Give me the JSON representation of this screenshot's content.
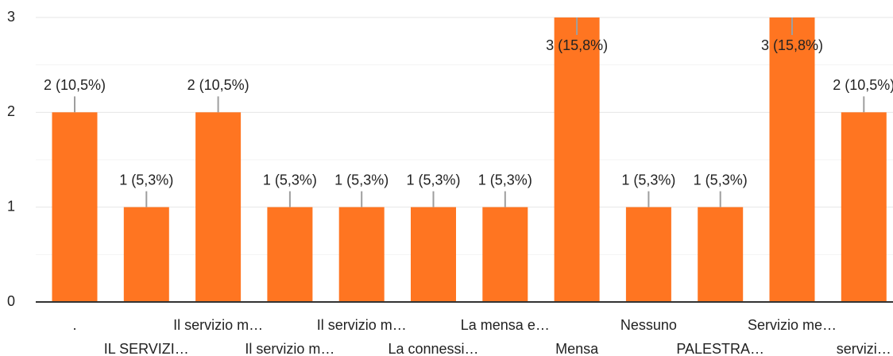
{
  "chart_data": {
    "type": "bar",
    "categories": [
      ".",
      "IL SERVIZI…",
      "Il servizio m…",
      "Il servizio m…",
      "Il servizio m…",
      "La connessi…",
      "La mensa e…",
      "Mensa",
      "Nessuno",
      "PALESTRA…",
      "Servizio me…",
      "servizi…"
    ],
    "values": [
      2,
      1,
      2,
      1,
      1,
      1,
      1,
      3,
      1,
      1,
      3,
      2
    ],
    "value_labels": [
      "2 (10,5%)",
      "1 (5,3%)",
      "2 (10,5%)",
      "1 (5,3%)",
      "1 (5,3%)",
      "1 (5,3%)",
      "1 (5,3%)",
      "3 (15,8%)",
      "1 (5,3%)",
      "1 (5,3%)",
      "3 (15,8%)",
      "2 (10,5%)"
    ],
    "color": "#ff7521",
    "ylim": [
      0,
      3
    ],
    "yticks": [
      0,
      1,
      2,
      3
    ],
    "grid": true
  }
}
